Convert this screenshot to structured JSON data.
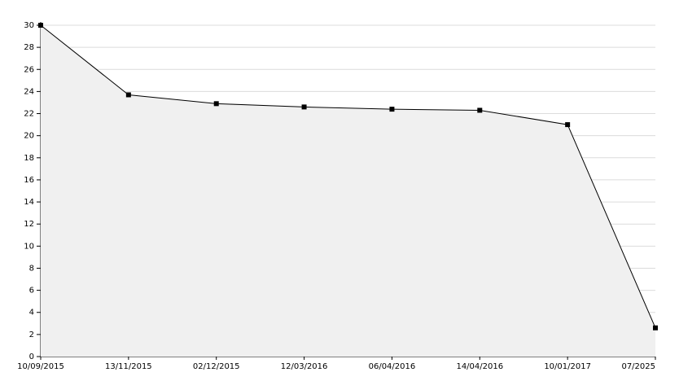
{
  "chart_data": {
    "type": "area",
    "categories": [
      "10/09/2015",
      "13/11/2015",
      "02/12/2015",
      "12/03/2016",
      "06/04/2016",
      "14/04/2016",
      "10/01/2017",
      "07/2025"
    ],
    "values": [
      30,
      23.7,
      22.9,
      22.6,
      22.4,
      22.3,
      21.0,
      2.6
    ],
    "color": "#000000",
    "fill": "#f0f0f0",
    "ylim": [
      0,
      30
    ],
    "yticks": [
      0,
      2,
      4,
      6,
      8,
      10,
      12,
      14,
      16,
      18,
      20,
      22,
      24,
      26,
      28,
      30
    ],
    "grid": true
  }
}
